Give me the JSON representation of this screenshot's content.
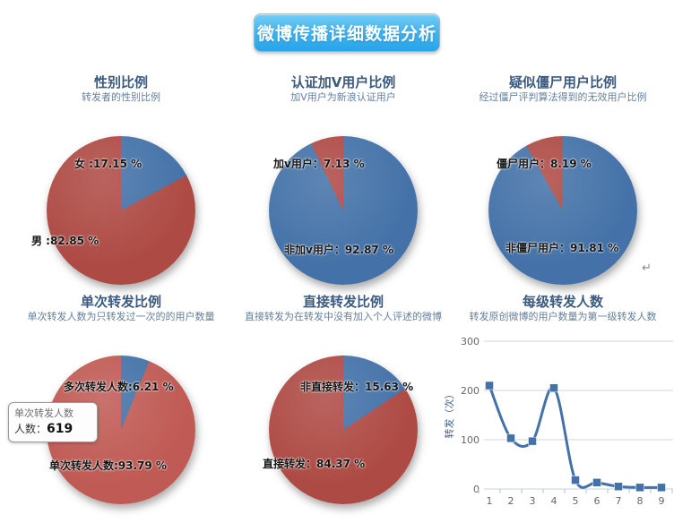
{
  "header": {
    "title": "微博传播详细数据分析"
  },
  "colors": {
    "accent_blue": "#4472a8",
    "dark_red": "#ae4a44",
    "light_red": "#c05a54",
    "header_gradient_top": "#74cdf5",
    "header_gradient_bottom": "#27a4e9",
    "grid_line": "#d6d6d6",
    "axis_line": "#c3d4e0"
  },
  "misc": {
    "return_mark": "↵"
  },
  "chart_data": [
    {
      "type": "pie",
      "title": "性别比例",
      "subtitle": "转发者的性别比例",
      "slices": [
        {
          "name": "女",
          "label": "女 :17.15 %",
          "pct": 17.15,
          "color": "#4472a8"
        },
        {
          "name": "男",
          "label": "男 :82.85 %",
          "pct": 82.85,
          "color": "#ae4a44"
        }
      ]
    },
    {
      "type": "pie",
      "title": "认证加V用户比例",
      "subtitle": "加V用户为新浪认证用户",
      "slices": [
        {
          "name": "非加v用户",
          "label": "非加v用户：92.87 %",
          "pct": 92.87,
          "color": "#4472a8"
        },
        {
          "name": "加v用户",
          "label": "加v用户：7.13 %",
          "pct": 7.13,
          "color": "#ae4a44"
        }
      ]
    },
    {
      "type": "pie",
      "title": "疑似僵尸用户比例",
      "subtitle": "经过僵尸评判算法得到的无效用户比例",
      "slices": [
        {
          "name": "非僵尸用户",
          "label": "非僵尸用户：91.81 %",
          "pct": 91.81,
          "color": "#4472a8"
        },
        {
          "name": "僵尸用户",
          "label": "僵尸用户：8.19 %",
          "pct": 8.19,
          "color": "#ae4a44"
        }
      ]
    },
    {
      "type": "pie",
      "title": "单次转发比例",
      "subtitle": "单次转发人数为只转发过一次的的用户数量",
      "slices": [
        {
          "name": "多次转发人数",
          "label": "多次转发人数:6.21 %",
          "pct": 6.21,
          "color": "#4472a8"
        },
        {
          "name": "单次转发人数",
          "label": "单次转发人数:93.79 %",
          "pct": 93.79,
          "color": "#c05a54"
        }
      ],
      "tooltip": {
        "line1": "单次转发人数",
        "line2_label": "人数：",
        "value": "619"
      }
    },
    {
      "type": "pie",
      "title": "直接转发比例",
      "subtitle": "直接转发为在转发中没有加入个人评述的微博",
      "slices": [
        {
          "name": "非直接转发",
          "label": "非直接转发：15.63 %",
          "pct": 15.63,
          "color": "#4472a8"
        },
        {
          "name": "直接转发",
          "label": "直接转发：84.37 %",
          "pct": 84.37,
          "color": "#ae4a44"
        }
      ]
    },
    {
      "type": "line",
      "title": "每级转发人数",
      "subtitle": "转发原创微博的用户数量为第一级转发人数",
      "ylabel": "转发（次）",
      "x": [
        1,
        2,
        3,
        4,
        5,
        6,
        7,
        8,
        9
      ],
      "values": [
        210,
        103,
        97,
        205,
        18,
        13,
        5,
        3,
        3
      ],
      "ylim": [
        0,
        300
      ],
      "yticks": [
        0,
        100,
        200,
        300
      ],
      "grid": true,
      "legend": "none",
      "line_color": "#4472a8",
      "marker": "square"
    }
  ]
}
